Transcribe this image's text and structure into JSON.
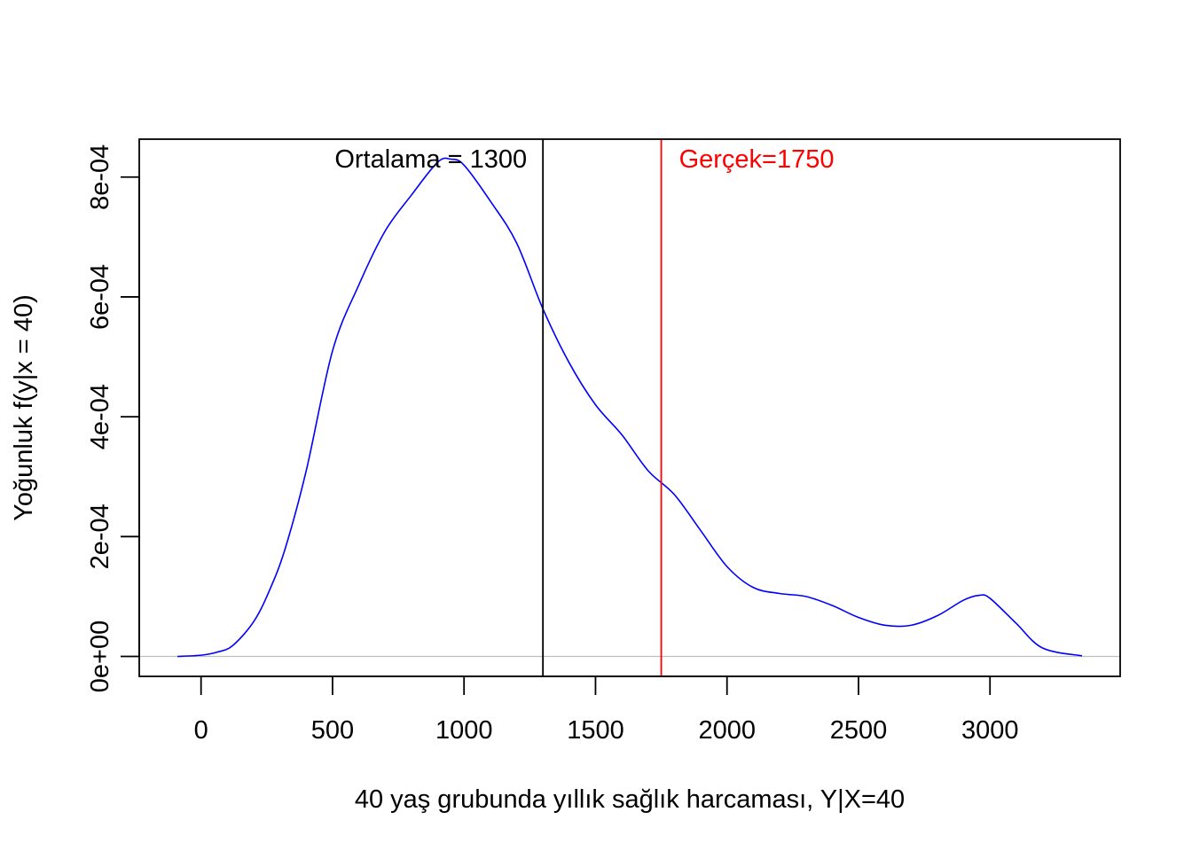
{
  "chart_data": {
    "type": "line",
    "title": "",
    "xlabel": "40 yaş grubunda yıllık sağlık harcaması, Y|X=40",
    "ylabel": "Yoğunluk f(y|x = 40)",
    "xlim": [
      -235,
      3495
    ],
    "ylim": [
      -3.33e-05,
      0.0008633
    ],
    "x_ticks": [
      0,
      500,
      1000,
      1500,
      2000,
      2500,
      3000
    ],
    "x_tick_labels": [
      "0",
      "500",
      "1000",
      "1500",
      "2000",
      "2500",
      "3000"
    ],
    "y_ticks": [
      0,
      0.0002,
      0.0004,
      0.0006,
      0.0008
    ],
    "y_tick_labels": [
      "0e+00",
      "2e-04",
      "4e-04",
      "6e-04",
      "8e-04"
    ],
    "grid": false,
    "series": [
      {
        "color": "#0000ff",
        "x": [
          -90,
          0,
          60,
          120,
          200,
          260,
          320,
          400,
          500,
          600,
          700,
          800,
          900,
          950,
          1000,
          1100,
          1200,
          1300,
          1400,
          1500,
          1600,
          1700,
          1800,
          1900,
          2000,
          2100,
          2200,
          2300,
          2400,
          2500,
          2600,
          2700,
          2800,
          2900,
          2960,
          3000,
          3100,
          3200,
          3350
        ],
        "y": [
          0,
          2e-06,
          7e-06,
          1.8e-05,
          5.8e-05,
          0.00011,
          0.00018,
          0.00031,
          0.00051,
          0.00062,
          0.00071,
          0.00077,
          0.000825,
          0.00083,
          0.00082,
          0.00076,
          0.00069,
          0.00058,
          0.00049,
          0.00042,
          0.00037,
          0.00031,
          0.00027,
          0.00021,
          0.00015,
          0.000115,
          0.000105,
          0.0001,
          8.5e-05,
          6.5e-05,
          5.2e-05,
          5.2e-05,
          6.8e-05,
          9.4e-05,
          0.000102,
          9.7e-05,
          5.5e-05,
          1.4e-05,
          1e-06
        ]
      }
    ],
    "baseline": {
      "y": 0,
      "color": "#bebebe"
    },
    "vlines": [
      {
        "x": 1300,
        "color": "#000000",
        "label": "Ortalama = 1300"
      },
      {
        "x": 1750,
        "color": "#ff0000",
        "label": "Gerçek=1750"
      }
    ]
  }
}
